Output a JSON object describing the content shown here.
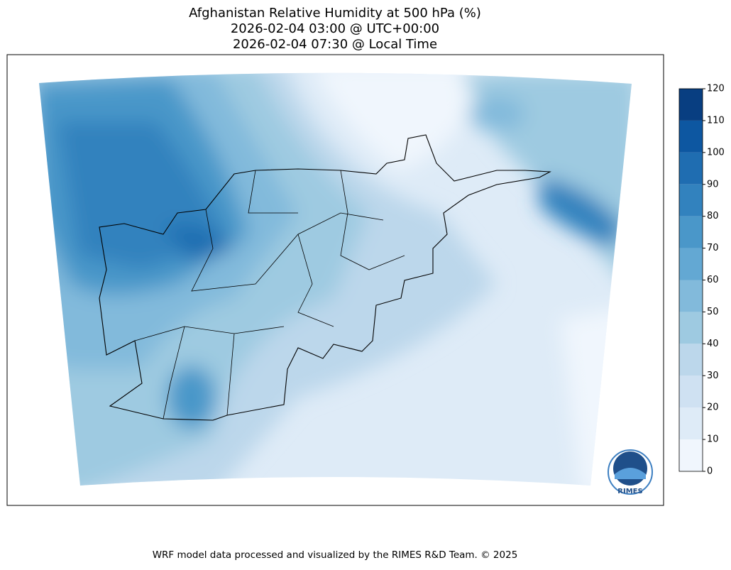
{
  "title": [
    "Afghanistan Relative Humidity at 500 hPa (%)",
    "2026-02-04 03:00 @ UTC+00:00",
    "2026-02-04 07:30 @ Local Time"
  ],
  "colorbar": {
    "ticks": [
      0,
      10,
      20,
      30,
      40,
      50,
      60,
      70,
      80,
      90,
      100,
      110,
      120
    ],
    "colors": [
      "#f0f6fd",
      "#deebf7",
      "#cfe1f2",
      "#bcd7eb",
      "#9ecae1",
      "#82badb",
      "#63a8d3",
      "#4a97c9",
      "#3282be",
      "#1f6db1",
      "#0d57a1",
      "#083e81"
    ]
  },
  "logo": "RIMES",
  "footer": "WRF model data processed and visualized by the RIMES R&D Team. © 2025"
}
